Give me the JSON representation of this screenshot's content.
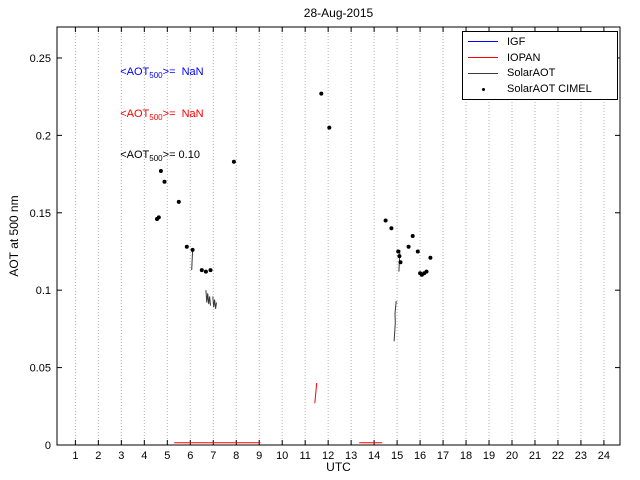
{
  "title": "28-Aug-2015",
  "xlabel": "UTC",
  "ylabel": "AOT at 500 nm",
  "annotations": [
    {
      "pre": "<AOT",
      "sub": "500",
      "post": ">=  NaN",
      "color": "#0000ff"
    },
    {
      "pre": "<AOT",
      "sub": "500",
      "post": ">=  NaN",
      "color": "#ff0000"
    },
    {
      "pre": "<AOT",
      "sub": "500",
      "post": ">= 0.10",
      "color": "#000000"
    }
  ],
  "chart_data": {
    "type": "scatter",
    "title": "28-Aug-2015",
    "xlabel": "UTC",
    "ylabel": "AOT at 500 nm",
    "xlim": [
      0.2,
      24.7
    ],
    "ylim": [
      0,
      0.27
    ],
    "xticks": [
      1,
      2,
      3,
      4,
      5,
      6,
      7,
      8,
      9,
      10,
      11,
      12,
      13,
      14,
      15,
      16,
      17,
      18,
      19,
      20,
      21,
      22,
      23,
      24
    ],
    "yticks": [
      0,
      0.05,
      0.1,
      0.15,
      0.2,
      0.25
    ],
    "ytick_labels": [
      "0",
      "0.05",
      "0.1",
      "0.15",
      "0.2",
      "0.25"
    ],
    "grid": "vertical-dotted",
    "legend_position": "top-right",
    "series": [
      {
        "name": "IGF",
        "type": "line",
        "color": "#0000ff",
        "segments": []
      },
      {
        "name": "IOPAN",
        "type": "line",
        "color": "#ff0000",
        "segments": [
          [
            [
              11.42,
              0.027
            ],
            [
              11.5,
              0.04
            ]
          ],
          [
            [
              5.3,
              0.0015
            ],
            [
              9.05,
              0.0015
            ]
          ],
          [
            [
              13.35,
              0.0015
            ],
            [
              14.35,
              0.0015
            ]
          ]
        ]
      },
      {
        "name": "SolarAOT",
        "type": "line",
        "color": "#3a3a3a",
        "segments": [
          [
            [
              6.06,
              0.113
            ],
            [
              6.1,
              0.126
            ]
          ],
          [
            [
              6.68,
              0.1
            ],
            [
              6.72,
              0.092
            ],
            [
              6.76,
              0.098
            ],
            [
              6.8,
              0.091
            ],
            [
              6.84,
              0.096
            ],
            [
              6.88,
              0.09
            ]
          ],
          [
            [
              6.98,
              0.096
            ],
            [
              7.02,
              0.089
            ],
            [
              7.06,
              0.094
            ],
            [
              7.1,
              0.088
            ],
            [
              7.14,
              0.092
            ]
          ],
          [
            [
              14.87,
              0.067
            ],
            [
              14.92,
              0.079
            ],
            [
              14.91,
              0.085
            ],
            [
              14.96,
              0.093
            ]
          ],
          [
            [
              15.08,
              0.112
            ],
            [
              15.12,
              0.126
            ]
          ]
        ]
      },
      {
        "name": "SolarAOT CIMEL",
        "type": "scatter",
        "color": "#000000",
        "points": [
          [
            4.55,
            0.146
          ],
          [
            4.63,
            0.147
          ],
          [
            4.72,
            0.177
          ],
          [
            4.88,
            0.17
          ],
          [
            5.5,
            0.157
          ],
          [
            5.85,
            0.128
          ],
          [
            6.1,
            0.126
          ],
          [
            6.5,
            0.113
          ],
          [
            6.68,
            0.112
          ],
          [
            6.88,
            0.113
          ],
          [
            7.9,
            0.183
          ],
          [
            11.7,
            0.227
          ],
          [
            12.05,
            0.205
          ],
          [
            14.5,
            0.145
          ],
          [
            14.75,
            0.14
          ],
          [
            15.05,
            0.125
          ],
          [
            15.1,
            0.122
          ],
          [
            15.15,
            0.118
          ],
          [
            15.5,
            0.128
          ],
          [
            15.68,
            0.135
          ],
          [
            15.9,
            0.125
          ],
          [
            16.0,
            0.111
          ],
          [
            16.08,
            0.11
          ],
          [
            16.18,
            0.111
          ],
          [
            16.28,
            0.112
          ],
          [
            16.45,
            0.121
          ]
        ]
      }
    ]
  }
}
